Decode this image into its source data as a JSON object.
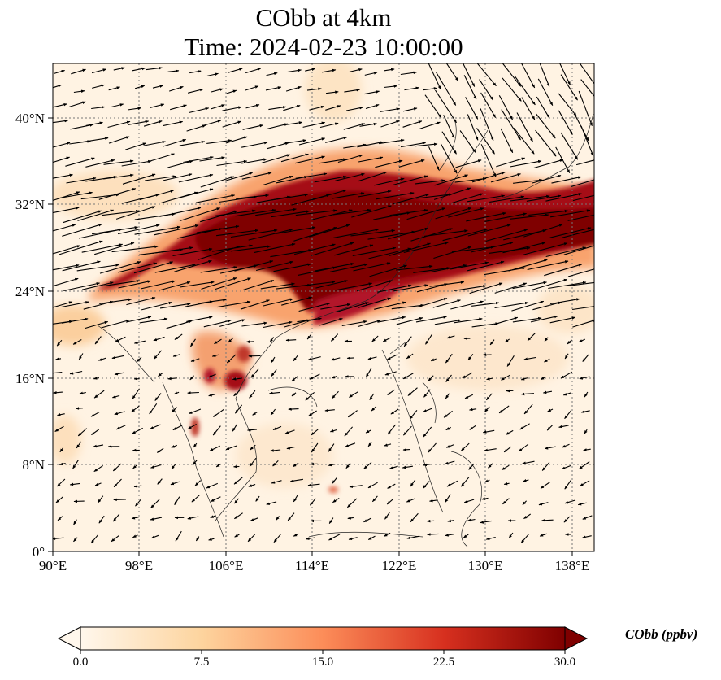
{
  "title": {
    "line1": "CObb at 4km",
    "line2": "Time: 2024-02-23 10:00:00"
  },
  "map": {
    "projection": "PlateCarree",
    "lon_range": [
      90,
      140
    ],
    "lat_range": [
      0,
      45
    ],
    "x_ticks": [
      "90°E",
      "98°E",
      "106°E",
      "114°E",
      "122°E",
      "130°E",
      "138°E"
    ],
    "y_ticks": [
      "0°",
      "8°N",
      "16°N",
      "24°N",
      "32°N",
      "40°N"
    ],
    "gridlines": "dotted",
    "overlay": "wind vectors (arrows)"
  },
  "colorbar": {
    "label": "CObb (ppbv)",
    "colormap": "OrRd",
    "min": 0.0,
    "max": 30.0,
    "extend": "both",
    "ticks": [
      "0.0",
      "7.5",
      "15.0",
      "22.5",
      "30.0"
    ]
  },
  "colors": {
    "background_low": "#fff5eb",
    "mid": "#fc8d59",
    "high": "#7f0000"
  }
}
